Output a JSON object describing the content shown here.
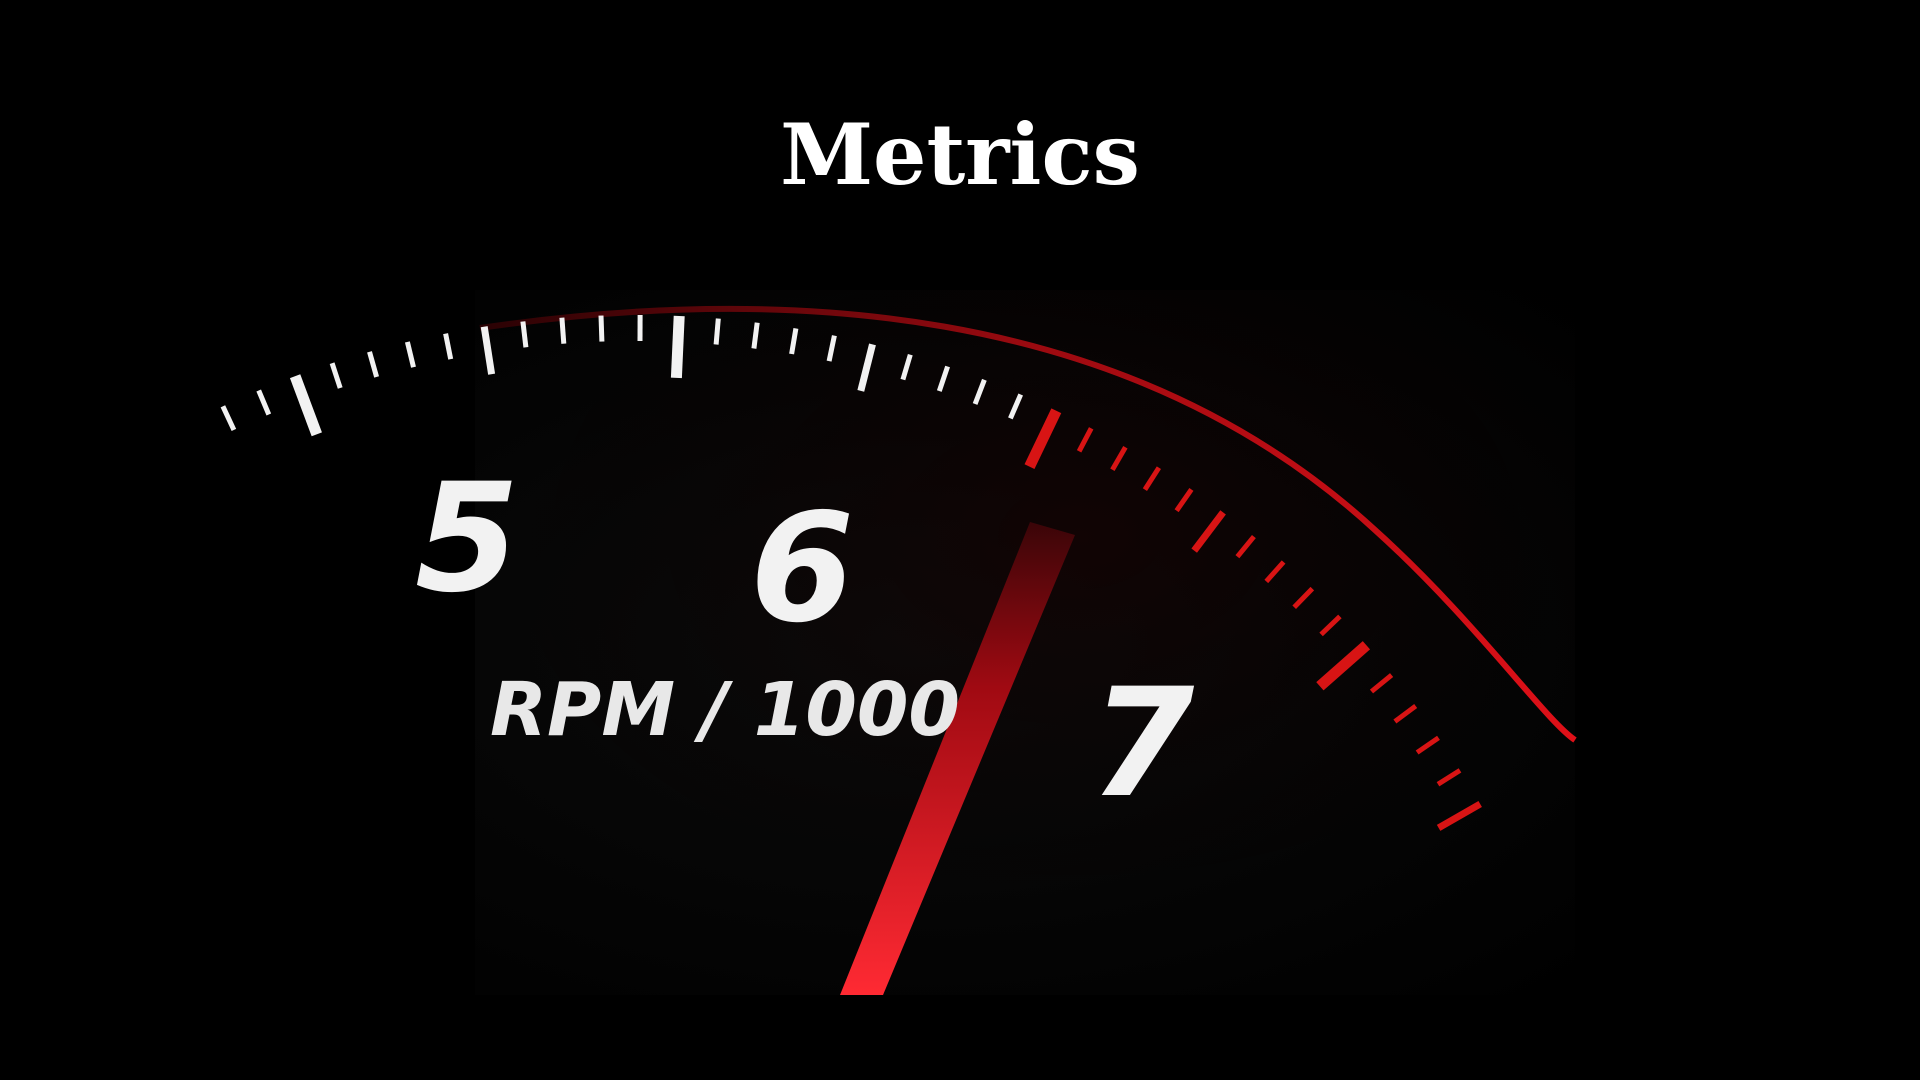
{
  "slide": {
    "title": "Metrics"
  },
  "gauge": {
    "labels": [
      "5",
      "6",
      "7"
    ],
    "unit_label": "RPM / 1000",
    "colors": {
      "tick": "#f2f2f2",
      "redline": "#d81414",
      "needle": "#e0141c",
      "background": "#000000"
    }
  }
}
